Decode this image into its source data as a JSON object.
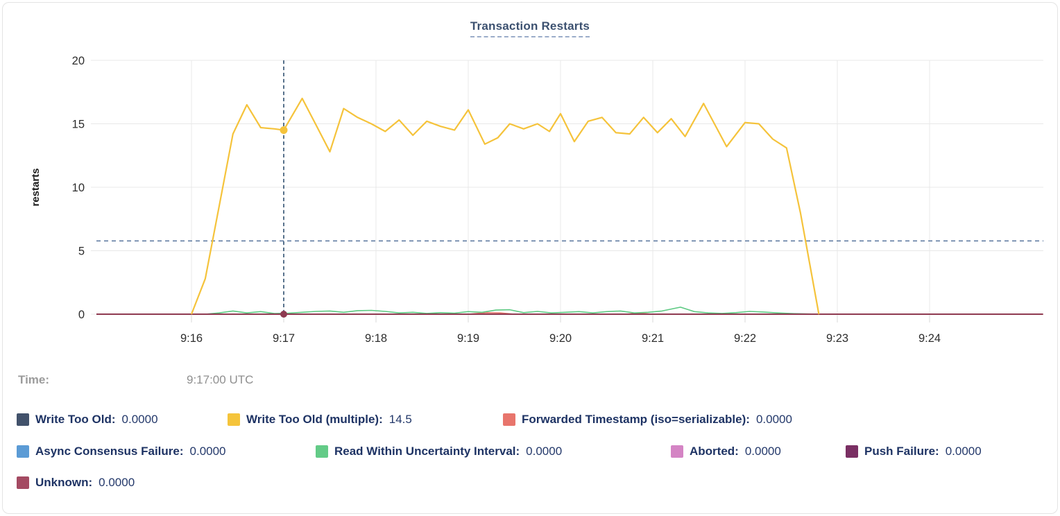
{
  "card": {
    "title": "Transaction Restarts"
  },
  "tooltip": {
    "time_label": "Time:",
    "time_value": "9:17:00 UTC"
  },
  "legend": {
    "rows": [
      [
        {
          "label": "Write Too Old:",
          "value": "0.0000",
          "color": "#42526b"
        },
        {
          "label": "Write Too Old (multiple):",
          "value": "14.5",
          "color": "#f5c43b"
        },
        {
          "label": "Forwarded Timestamp (iso=serializable):",
          "value": "0.0000",
          "color": "#e8756c"
        }
      ],
      [
        {
          "label": "Async Consensus Failure:",
          "value": "0.0000",
          "color": "#5b9bd5"
        },
        {
          "label": "Read Within Uncertainty Interval:",
          "value": "0.0000",
          "color": "#63cb87"
        },
        {
          "label": "Aborted:",
          "value": "0.0000",
          "color": "#d484c4"
        },
        {
          "label": "Push Failure:",
          "value": "0.0000",
          "color": "#7a2f63"
        }
      ],
      [
        {
          "label": "Unknown:",
          "value": "0.0000",
          "color": "#a44a62"
        }
      ]
    ]
  },
  "chart_data": {
    "type": "line",
    "title": "Transaction Restarts",
    "xlabel": "",
    "ylabel": "restarts",
    "x_unit": "minutes after 9:00 UTC",
    "ylim": [
      0,
      20
    ],
    "yticks": [
      0,
      5,
      10,
      15,
      20
    ],
    "xlim_minutes": [
      14.97,
      25.23
    ],
    "xticks": [
      {
        "t": 16,
        "label": "9:16"
      },
      {
        "t": 17,
        "label": "9:17"
      },
      {
        "t": 18,
        "label": "9:18"
      },
      {
        "t": 19,
        "label": "9:19"
      },
      {
        "t": 20,
        "label": "9:20"
      },
      {
        "t": 21,
        "label": "9:21"
      },
      {
        "t": 22,
        "label": "9:22"
      },
      {
        "t": 23,
        "label": "9:23"
      },
      {
        "t": 24,
        "label": "9:24"
      }
    ],
    "grid": true,
    "legend_position": "bottom",
    "hover": {
      "t": 17,
      "time_label": "9:17:00 UTC",
      "guide_y_value": 5.77,
      "points": [
        {
          "series": "Write Too Old (multiple)",
          "value": 14.5
        },
        {
          "series": "Unknown",
          "value": 0
        }
      ]
    },
    "series": [
      {
        "name": "Write Too Old",
        "color": "#42526b",
        "z": 1,
        "width": 1.5,
        "values": [
          [
            16.0,
            0
          ],
          [
            22.8,
            0
          ]
        ]
      },
      {
        "name": "Async Consensus Failure",
        "color": "#5b9bd5",
        "z": 1,
        "width": 1.5,
        "values": [
          [
            16.0,
            0
          ],
          [
            22.8,
            0
          ]
        ]
      },
      {
        "name": "Aborted",
        "color": "#d484c4",
        "z": 1,
        "width": 1.5,
        "values": [
          [
            16.0,
            0
          ],
          [
            22.8,
            0
          ]
        ]
      },
      {
        "name": "Push Failure",
        "color": "#7a2f63",
        "z": 1,
        "width": 1.5,
        "values": [
          [
            16.0,
            0
          ],
          [
            22.8,
            0
          ]
        ]
      },
      {
        "name": "Forwarded Timestamp (iso=serializable)",
        "color": "#e8756c",
        "z": 2,
        "width": 1.6,
        "values": [
          [
            14.97,
            0
          ],
          [
            19.0,
            0
          ],
          [
            19.2,
            0.12
          ],
          [
            19.35,
            0.1
          ],
          [
            19.5,
            0
          ],
          [
            20.7,
            0
          ],
          [
            20.85,
            0.08
          ],
          [
            21.0,
            0
          ],
          [
            25.23,
            0
          ]
        ]
      },
      {
        "name": "Read Within Uncertainty Interval",
        "color": "#5bc981",
        "z": 3,
        "width": 1.6,
        "values": [
          [
            16.15,
            0
          ],
          [
            16.3,
            0.1
          ],
          [
            16.45,
            0.25
          ],
          [
            16.6,
            0.1
          ],
          [
            16.75,
            0.2
          ],
          [
            16.9,
            0.05
          ],
          [
            17.05,
            0.08
          ],
          [
            17.2,
            0.15
          ],
          [
            17.35,
            0.22
          ],
          [
            17.5,
            0.25
          ],
          [
            17.65,
            0.15
          ],
          [
            17.8,
            0.28
          ],
          [
            17.95,
            0.3
          ],
          [
            18.1,
            0.22
          ],
          [
            18.25,
            0.1
          ],
          [
            18.4,
            0.15
          ],
          [
            18.55,
            0.06
          ],
          [
            18.7,
            0.12
          ],
          [
            18.85,
            0.08
          ],
          [
            19.0,
            0.2
          ],
          [
            19.15,
            0.15
          ],
          [
            19.3,
            0.32
          ],
          [
            19.45,
            0.35
          ],
          [
            19.6,
            0.12
          ],
          [
            19.75,
            0.22
          ],
          [
            19.9,
            0.1
          ],
          [
            20.05,
            0.15
          ],
          [
            20.2,
            0.2
          ],
          [
            20.35,
            0.1
          ],
          [
            20.5,
            0.2
          ],
          [
            20.65,
            0.25
          ],
          [
            20.8,
            0.1
          ],
          [
            20.95,
            0.15
          ],
          [
            21.1,
            0.25
          ],
          [
            21.3,
            0.55
          ],
          [
            21.45,
            0.2
          ],
          [
            21.6,
            0.1
          ],
          [
            21.75,
            0.06
          ],
          [
            21.9,
            0.12
          ],
          [
            22.05,
            0.22
          ],
          [
            22.2,
            0.17
          ],
          [
            22.35,
            0.1
          ],
          [
            22.5,
            0.05
          ],
          [
            22.65,
            0.02
          ],
          [
            22.8,
            0
          ]
        ]
      },
      {
        "name": "Unknown",
        "color": "#8e3a50",
        "z": 4,
        "width": 2,
        "values": [
          [
            14.97,
            0
          ],
          [
            25.23,
            0
          ]
        ]
      },
      {
        "name": "Write Too Old (multiple)",
        "color": "#f5c33b",
        "z": 5,
        "width": 2.2,
        "values": [
          [
            16.0,
            0
          ],
          [
            16.15,
            2.8
          ],
          [
            16.3,
            8.5
          ],
          [
            16.45,
            14.2
          ],
          [
            16.6,
            16.5
          ],
          [
            16.75,
            14.7
          ],
          [
            16.9,
            14.6
          ],
          [
            17.0,
            14.5
          ],
          [
            17.2,
            17.0
          ],
          [
            17.35,
            14.9
          ],
          [
            17.5,
            12.8
          ],
          [
            17.65,
            16.2
          ],
          [
            17.8,
            15.5
          ],
          [
            17.95,
            15.0
          ],
          [
            18.1,
            14.4
          ],
          [
            18.25,
            15.3
          ],
          [
            18.4,
            14.1
          ],
          [
            18.55,
            15.2
          ],
          [
            18.7,
            14.8
          ],
          [
            18.85,
            14.5
          ],
          [
            19.0,
            16.1
          ],
          [
            19.18,
            13.4
          ],
          [
            19.32,
            13.9
          ],
          [
            19.45,
            15.0
          ],
          [
            19.6,
            14.6
          ],
          [
            19.75,
            15.0
          ],
          [
            19.88,
            14.4
          ],
          [
            20.0,
            15.8
          ],
          [
            20.15,
            13.6
          ],
          [
            20.3,
            15.2
          ],
          [
            20.45,
            15.5
          ],
          [
            20.6,
            14.3
          ],
          [
            20.75,
            14.2
          ],
          [
            20.9,
            15.5
          ],
          [
            21.05,
            14.3
          ],
          [
            21.2,
            15.4
          ],
          [
            21.35,
            14.0
          ],
          [
            21.55,
            16.6
          ],
          [
            21.8,
            13.2
          ],
          [
            22.0,
            15.1
          ],
          [
            22.15,
            15.0
          ],
          [
            22.3,
            13.8
          ],
          [
            22.45,
            13.1
          ],
          [
            22.6,
            8.0
          ],
          [
            22.8,
            0
          ]
        ]
      }
    ]
  }
}
